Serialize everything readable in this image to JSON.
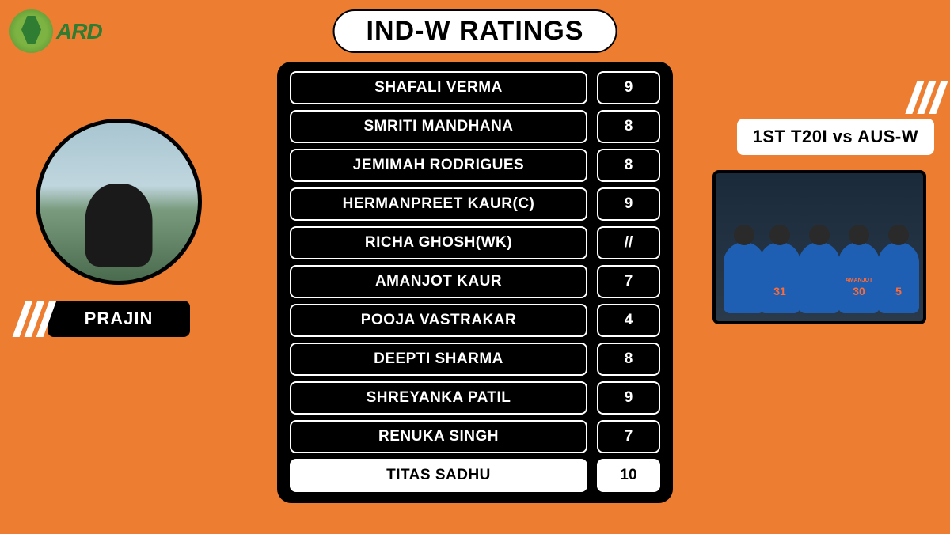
{
  "logo": {
    "text": "ARD"
  },
  "title": "IND-W RATINGS",
  "author": {
    "name": "PRAJIN"
  },
  "match": {
    "label": "1ST T20I vs AUS-W"
  },
  "team_photo": {
    "jerseys": [
      {
        "name": "",
        "num": ""
      },
      {
        "name": "",
        "num": "31"
      },
      {
        "name": "",
        "num": ""
      },
      {
        "name": "AMANJOT",
        "num": "30"
      },
      {
        "name": "",
        "num": "5"
      }
    ]
  },
  "ratings": {
    "rows": [
      {
        "player": "SHAFALI VERMA",
        "score": "9",
        "highlight": false
      },
      {
        "player": "SMRITI MANDHANA",
        "score": "8",
        "highlight": false
      },
      {
        "player": "JEMIMAH RODRIGUES",
        "score": "8",
        "highlight": false
      },
      {
        "player": "HERMANPREET KAUR(C)",
        "score": "9",
        "highlight": false
      },
      {
        "player": "RICHA GHOSH(WK)",
        "score": "//",
        "highlight": false
      },
      {
        "player": "AMANJOT KAUR",
        "score": "7",
        "highlight": false
      },
      {
        "player": "POOJA VASTRAKAR",
        "score": "4",
        "highlight": false
      },
      {
        "player": "DEEPTI SHARMA",
        "score": "8",
        "highlight": false
      },
      {
        "player": "SHREYANKA PATIL",
        "score": "9",
        "highlight": false
      },
      {
        "player": "RENUKA SINGH",
        "score": "7",
        "highlight": false
      },
      {
        "player": "TITAS SADHU",
        "score": "10",
        "highlight": true
      }
    ]
  },
  "colors": {
    "background": "#ed7d31",
    "table_bg": "#000000",
    "cell_border": "#ffffff",
    "highlight_bg": "#ffffff",
    "highlight_text": "#000000"
  }
}
